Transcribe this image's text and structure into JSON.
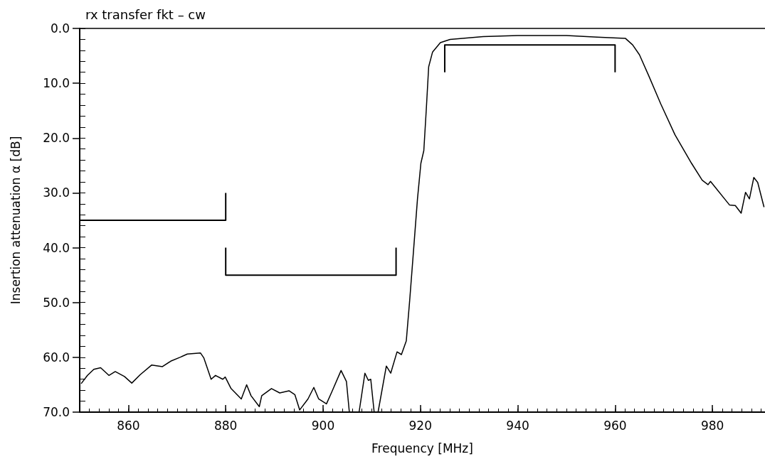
{
  "chart_data": {
    "type": "line",
    "title": "rx transfer fkt – cw",
    "xlabel": "Frequency [MHz]",
    "ylabel": "Insertion attenuation α [dB]",
    "xlim": [
      850,
      990.8
    ],
    "xticks": [
      860,
      880,
      900,
      920,
      940,
      960,
      980
    ],
    "ylim": [
      70,
      0
    ],
    "yticks": [
      {
        "value": 0,
        "label": "0.0"
      },
      {
        "value": 10,
        "label": "10.0"
      },
      {
        "value": 20,
        "label": "20.0"
      },
      {
        "value": 30,
        "label": "30.0"
      },
      {
        "value": 40,
        "label": "40.0"
      },
      {
        "value": 50,
        "label": "50.0"
      },
      {
        "value": 60,
        "label": "60.0"
      },
      {
        "value": 70,
        "label": "70.0"
      }
    ],
    "grid": false,
    "marker": "none",
    "line_style": "solid",
    "series": [
      {
        "color": "#000000",
        "x": [
          850.3,
          851.6,
          852.9,
          854.3,
          856.0,
          857.3,
          859.2,
          860.7,
          862.4,
          864.8,
          867.0,
          868.7,
          870.6,
          872.1,
          874.8,
          875.5,
          877.0,
          877.9,
          879.4,
          879.9,
          881.1,
          883.2,
          884.3,
          885.2,
          886.9,
          887.4,
          889.4,
          891.1,
          893.0,
          894.2,
          895.2,
          896.9,
          898.1,
          899.1,
          900.7,
          901.8,
          903.7,
          904.8,
          905.4,
          906.4,
          907.4,
          908.6,
          909.3,
          909.8,
          910.5,
          910.9,
          911.3,
          913.0,
          913.9,
          915.2,
          916.1,
          917.1,
          917.8,
          918.6,
          919.4,
          920.1,
          920.7,
          921.2,
          921.7,
          922.5,
          924.1,
          926.1,
          932.9,
          940,
          945,
          950,
          956.3,
          962.1,
          963.6,
          965.0,
          966.9,
          969.4,
          972.3,
          975.7,
          977.9,
          979.1,
          979.6,
          980.6,
          983.5,
          984.7,
          985.9,
          986.8,
          987.6,
          988.5,
          989.3,
          990.6
        ],
        "values": [
          64.8,
          63.3,
          62.2,
          61.9,
          63.3,
          62.6,
          63.5,
          64.7,
          63.2,
          61.4,
          61.7,
          60.7,
          60.0,
          59.4,
          59.2,
          60.1,
          64.0,
          63.3,
          64.0,
          63.6,
          65.7,
          67.6,
          65.0,
          67.0,
          69.0,
          67.0,
          65.7,
          66.5,
          66.1,
          66.8,
          69.6,
          67.6,
          65.5,
          67.6,
          68.5,
          66.3,
          62.4,
          64.4,
          70,
          null,
          70,
          62.9,
          64.2,
          64.0,
          70,
          null,
          70,
          61.6,
          62.9,
          59.0,
          59.5,
          57.0,
          49.6,
          40.4,
          31.1,
          24.6,
          22.3,
          14.9,
          7.0,
          4.3,
          2.6,
          2.0,
          1.5,
          1.3,
          1.3,
          1.3,
          1.6,
          1.8,
          3.0,
          4.8,
          8.6,
          13.8,
          19.4,
          24.6,
          27.7,
          28.5,
          27.9,
          29.0,
          32.2,
          32.3,
          33.7,
          29.9,
          31.1,
          27.2,
          28.1,
          32.6
        ]
      },
      {
        "color": "#000000",
        "x": [
          850,
          880,
          880
        ],
        "values": [
          35,
          35,
          30
        ]
      },
      {
        "color": "#000000",
        "x": [
          880,
          880,
          915,
          915
        ],
        "values": [
          40,
          45,
          45,
          40
        ]
      },
      {
        "color": "#000000",
        "x": [
          925,
          925,
          960,
          960
        ],
        "values": [
          8,
          3,
          3,
          8
        ]
      }
    ]
  }
}
